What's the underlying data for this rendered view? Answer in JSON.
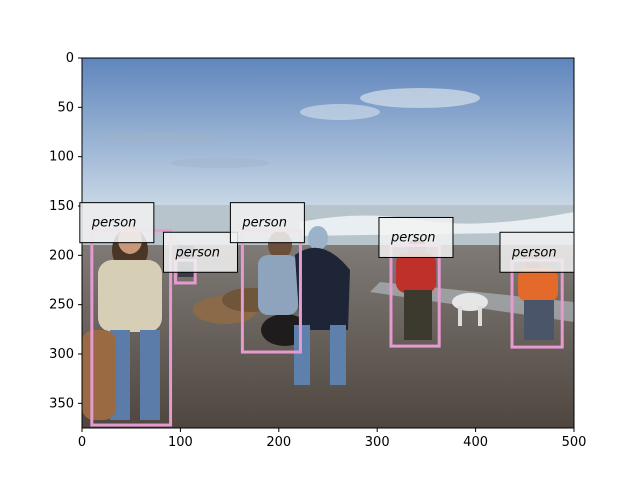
{
  "image": {
    "description_icon": "beach-photo",
    "x_range": [
      0,
      500
    ],
    "y_range": [
      0,
      375
    ]
  },
  "axes": {
    "x_ticks": [
      "0",
      "100",
      "200",
      "300",
      "400",
      "500"
    ],
    "y_ticks": [
      "0",
      "50",
      "100",
      "150",
      "200",
      "250",
      "300",
      "350"
    ]
  },
  "detections": [
    {
      "label": "person",
      "x0": 10,
      "y0": 175,
      "x1": 90,
      "y1": 372
    },
    {
      "label": "person",
      "x0": 95,
      "y0": 205,
      "x1": 115,
      "y1": 228
    },
    {
      "label": "person",
      "x0": 163,
      "y0": 175,
      "x1": 222,
      "y1": 298
    },
    {
      "label": "person",
      "x0": 314,
      "y0": 190,
      "x1": 363,
      "y1": 292
    },
    {
      "label": "person",
      "x0": 437,
      "y0": 205,
      "x1": 488,
      "y1": 293
    }
  ],
  "colors": {
    "box_stroke": "#e59ad0",
    "label_bg": "#f2f2f2",
    "sky_top": "#5f86bd",
    "sky_bottom": "#c9d8e6",
    "sea": "#a9b8c2",
    "sand": "#5b5049"
  }
}
